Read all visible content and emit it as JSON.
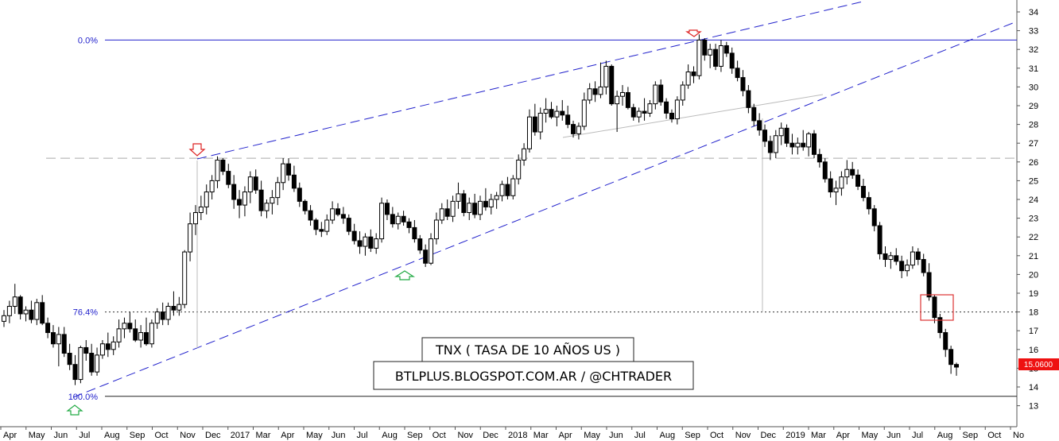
{
  "chart_data": {
    "type": "candlestick",
    "ticker_box": "TNX ( TASA DE 10 AÑOS US )",
    "credit_box": "BTLPLUS.BLOGSPOT.COM.AR / @CHTRADER",
    "last_price_label": "15.0600",
    "ylim": [
      12,
      35
    ],
    "y_ticks": [
      "13",
      "14",
      "15",
      "16",
      "17",
      "18",
      "19",
      "20",
      "21",
      "22",
      "23",
      "24",
      "25",
      "26",
      "27",
      "28",
      "29",
      "30",
      "31",
      "32",
      "33",
      "34"
    ],
    "x_labels": [
      "Apr",
      "May",
      "Jun",
      "Jul",
      "Aug",
      "Sep",
      "Oct",
      "Nov",
      "Dec",
      "2017",
      "Mar",
      "Apr",
      "May",
      "Jun",
      "Jul",
      "Aug",
      "Sep",
      "Oct",
      "Nov",
      "Dec",
      "2018",
      "Mar",
      "Apr",
      "May",
      "Jun",
      "Jul",
      "Aug",
      "Sep",
      "Oct",
      "Nov",
      "Dec",
      "2019",
      "Mar",
      "Apr",
      "May",
      "Jun",
      "Jul",
      "Aug",
      "Sep",
      "Oct",
      "No"
    ],
    "fib_levels": [
      {
        "label": "0.0%",
        "value": 32.5
      },
      {
        "label": "76.4%",
        "value": 18.0
      },
      {
        "label": "100.0%",
        "value": 13.5
      }
    ],
    "horizontal_levels": [
      26.2
    ],
    "colors": {
      "fib": "#2222cc",
      "trend": "#2222cc",
      "up_arrow": "#22aa44",
      "down_arrow": "#dd2222",
      "price_tag": "#ee1111",
      "highlight_box": "#dd3333"
    },
    "series": [
      {
        "values": [
          [
            17.5,
            18.1,
            17.2,
            17.8
          ],
          [
            17.8,
            18.6,
            17.4,
            18.3
          ],
          [
            18.3,
            19.5,
            17.9,
            18.8
          ],
          [
            18.8,
            18.9,
            17.6,
            17.9
          ],
          [
            17.9,
            18.3,
            17.5,
            18.1
          ],
          [
            18.1,
            18.6,
            17.4,
            17.6
          ],
          [
            17.6,
            18.7,
            17.3,
            18.5
          ],
          [
            18.5,
            18.9,
            17.3,
            17.4
          ],
          [
            17.4,
            17.7,
            16.6,
            16.9
          ],
          [
            16.9,
            17.3,
            16.1,
            16.3
          ],
          [
            16.3,
            17.2,
            15.1,
            16.8
          ],
          [
            16.8,
            17.2,
            15.6,
            15.8
          ],
          [
            15.8,
            16.3,
            14.9,
            15.2
          ],
          [
            15.2,
            15.7,
            14.1,
            14.4
          ],
          [
            14.4,
            16.2,
            14.2,
            16.1
          ],
          [
            16.1,
            16.5,
            15.4,
            15.8
          ],
          [
            15.8,
            16.3,
            14.6,
            14.8
          ],
          [
            14.8,
            16.1,
            14.6,
            15.7
          ],
          [
            15.7,
            16.5,
            15.5,
            16.3
          ],
          [
            16.3,
            16.9,
            15.6,
            16.0
          ],
          [
            16.0,
            16.7,
            15.7,
            16.4
          ],
          [
            16.4,
            17.6,
            16.1,
            17.1
          ],
          [
            17.1,
            17.7,
            16.6,
            17.4
          ],
          [
            17.4,
            18.0,
            16.9,
            17.1
          ],
          [
            17.1,
            17.6,
            16.4,
            16.5
          ],
          [
            16.5,
            17.3,
            16.1,
            16.9
          ],
          [
            16.9,
            17.7,
            16.2,
            16.3
          ],
          [
            16.3,
            17.6,
            16.1,
            17.4
          ],
          [
            17.4,
            18.2,
            17.1,
            18.0
          ],
          [
            18.0,
            18.5,
            17.3,
            17.6
          ],
          [
            17.6,
            18.5,
            17.3,
            18.3
          ],
          [
            18.3,
            19.1,
            17.8,
            18.1
          ],
          [
            18.1,
            18.8,
            17.8,
            18.4
          ],
          [
            18.4,
            21.3,
            18.2,
            21.2
          ],
          [
            21.2,
            23.3,
            20.7,
            22.7
          ],
          [
            22.7,
            23.7,
            22.1,
            23.3
          ],
          [
            23.3,
            24.2,
            22.9,
            23.6
          ],
          [
            23.6,
            24.8,
            23.2,
            24.4
          ],
          [
            24.4,
            25.3,
            24.0,
            25.0
          ],
          [
            25.0,
            26.3,
            24.6,
            26.1
          ],
          [
            26.1,
            26.2,
            25.3,
            25.5
          ],
          [
            25.5,
            25.9,
            24.6,
            24.8
          ],
          [
            24.8,
            25.3,
            23.5,
            24.0
          ],
          [
            24.0,
            24.5,
            23.0,
            23.7
          ],
          [
            23.7,
            24.7,
            23.1,
            24.4
          ],
          [
            24.4,
            25.5,
            23.8,
            25.2
          ],
          [
            25.2,
            25.6,
            24.3,
            24.5
          ],
          [
            24.5,
            25.0,
            23.1,
            23.4
          ],
          [
            23.4,
            24.0,
            23.0,
            23.8
          ],
          [
            23.8,
            24.5,
            23.2,
            24.1
          ],
          [
            24.1,
            25.2,
            23.7,
            24.9
          ],
          [
            24.9,
            26.2,
            24.5,
            25.9
          ],
          [
            25.9,
            26.2,
            25.0,
            25.3
          ],
          [
            25.3,
            25.8,
            24.4,
            24.6
          ],
          [
            24.6,
            24.9,
            23.6,
            23.9
          ],
          [
            23.9,
            24.0,
            23.2,
            23.4
          ],
          [
            23.4,
            23.7,
            22.6,
            22.9
          ],
          [
            22.9,
            23.0,
            22.1,
            22.4
          ],
          [
            22.4,
            22.8,
            22.0,
            22.3
          ],
          [
            22.3,
            23.2,
            22.1,
            22.9
          ],
          [
            22.9,
            23.9,
            22.7,
            23.5
          ],
          [
            23.5,
            23.8,
            23.1,
            23.2
          ],
          [
            23.2,
            23.6,
            22.7,
            23.0
          ],
          [
            23.0,
            23.2,
            22.1,
            22.3
          ],
          [
            22.3,
            22.7,
            21.6,
            21.8
          ],
          [
            21.8,
            22.3,
            21.1,
            21.5
          ],
          [
            21.5,
            22.2,
            21.0,
            22.0
          ],
          [
            22.0,
            22.4,
            21.2,
            21.4
          ],
          [
            21.4,
            22.2,
            21.1,
            21.9
          ],
          [
            21.9,
            24.1,
            21.7,
            23.8
          ],
          [
            23.8,
            24.0,
            22.9,
            23.2
          ],
          [
            23.2,
            23.6,
            22.5,
            22.7
          ],
          [
            22.7,
            23.3,
            22.4,
            23.1
          ],
          [
            23.1,
            23.4,
            22.6,
            22.8
          ],
          [
            22.8,
            23.0,
            22.2,
            22.5
          ],
          [
            22.5,
            22.9,
            21.7,
            21.9
          ],
          [
            21.9,
            22.1,
            21.1,
            21.3
          ],
          [
            21.3,
            21.6,
            20.4,
            20.6
          ],
          [
            20.6,
            22.2,
            20.5,
            21.9
          ],
          [
            21.9,
            23.3,
            21.6,
            22.9
          ],
          [
            22.9,
            23.8,
            22.7,
            23.5
          ],
          [
            23.5,
            24.0,
            22.9,
            23.1
          ],
          [
            23.1,
            24.2,
            22.8,
            23.9
          ],
          [
            23.9,
            24.9,
            23.5,
            24.3
          ],
          [
            24.3,
            24.5,
            23.1,
            23.3
          ],
          [
            23.3,
            24.1,
            22.9,
            23.8
          ],
          [
            23.8,
            24.3,
            23.0,
            23.2
          ],
          [
            23.2,
            24.2,
            22.9,
            23.9
          ],
          [
            23.9,
            24.6,
            23.4,
            23.6
          ],
          [
            23.6,
            24.3,
            23.2,
            24.0
          ],
          [
            24.0,
            24.4,
            23.5,
            24.2
          ],
          [
            24.2,
            25.0,
            23.9,
            24.8
          ],
          [
            24.8,
            25.2,
            24.0,
            24.2
          ],
          [
            24.2,
            25.3,
            24.0,
            25.1
          ],
          [
            25.1,
            26.4,
            24.8,
            26.1
          ],
          [
            26.1,
            27.0,
            25.8,
            26.7
          ],
          [
            26.7,
            28.8,
            26.5,
            28.4
          ],
          [
            28.4,
            29.1,
            27.4,
            27.6
          ],
          [
            27.6,
            28.9,
            27.2,
            28.6
          ],
          [
            28.6,
            29.4,
            28.1,
            28.8
          ],
          [
            28.8,
            29.2,
            28.3,
            28.4
          ],
          [
            28.4,
            29.0,
            27.9,
            28.7
          ],
          [
            28.7,
            29.3,
            28.2,
            28.5
          ],
          [
            28.5,
            29.0,
            27.8,
            28.0
          ],
          [
            28.0,
            28.2,
            27.3,
            27.5
          ],
          [
            27.5,
            28.1,
            27.2,
            27.9
          ],
          [
            27.9,
            29.7,
            27.7,
            29.3
          ],
          [
            29.3,
            30.2,
            29.1,
            29.9
          ],
          [
            29.9,
            30.3,
            29.2,
            29.6
          ],
          [
            29.6,
            31.3,
            29.4,
            30.0
          ],
          [
            30.0,
            31.4,
            29.6,
            31.1
          ],
          [
            31.1,
            31.2,
            29.0,
            29.1
          ],
          [
            29.1,
            29.8,
            27.6,
            29.5
          ],
          [
            29.5,
            30.1,
            29.0,
            29.7
          ],
          [
            29.7,
            30.0,
            28.8,
            28.9
          ],
          [
            28.9,
            29.1,
            28.2,
            28.4
          ],
          [
            28.4,
            28.9,
            28.1,
            28.7
          ],
          [
            28.7,
            29.4,
            28.2,
            28.6
          ],
          [
            28.6,
            29.3,
            28.4,
            29.1
          ],
          [
            29.1,
            30.3,
            28.8,
            30.1
          ],
          [
            30.1,
            30.4,
            29.0,
            29.2
          ],
          [
            29.2,
            29.4,
            28.3,
            28.6
          ],
          [
            28.6,
            28.8,
            28.1,
            28.3
          ],
          [
            28.3,
            29.5,
            28.0,
            29.3
          ],
          [
            29.3,
            30.3,
            29.0,
            30.1
          ],
          [
            30.1,
            31.2,
            29.9,
            30.8
          ],
          [
            30.8,
            31.1,
            30.2,
            30.6
          ],
          [
            30.6,
            32.8,
            30.4,
            32.5
          ],
          [
            32.5,
            32.6,
            31.4,
            31.7
          ],
          [
            31.7,
            32.3,
            31.0,
            32.0
          ],
          [
            32.0,
            32.3,
            30.9,
            31.1
          ],
          [
            31.1,
            32.5,
            30.8,
            32.2
          ],
          [
            32.2,
            32.4,
            31.6,
            31.8
          ],
          [
            31.8,
            32.1,
            30.7,
            31.0
          ],
          [
            31.0,
            31.4,
            30.3,
            30.5
          ],
          [
            30.5,
            30.9,
            29.5,
            29.8
          ],
          [
            29.8,
            30.1,
            28.6,
            28.9
          ],
          [
            28.9,
            29.1,
            27.9,
            28.2
          ],
          [
            28.2,
            28.6,
            27.4,
            27.7
          ],
          [
            27.7,
            28.0,
            26.8,
            27.1
          ],
          [
            27.1,
            27.4,
            26.1,
            26.5
          ],
          [
            26.5,
            27.7,
            26.2,
            27.4
          ],
          [
            27.4,
            28.1,
            26.9,
            27.8
          ],
          [
            27.8,
            28.0,
            26.8,
            27.0
          ],
          [
            27.0,
            27.5,
            26.4,
            26.8
          ],
          [
            26.8,
            27.3,
            26.4,
            27.0
          ],
          [
            27.0,
            27.7,
            26.6,
            26.8
          ],
          [
            26.8,
            27.6,
            26.3,
            27.5
          ],
          [
            27.5,
            27.7,
            26.2,
            26.4
          ],
          [
            26.4,
            26.7,
            25.7,
            26.0
          ],
          [
            26.0,
            26.2,
            24.9,
            25.1
          ],
          [
            25.1,
            25.5,
            24.1,
            24.4
          ],
          [
            24.4,
            25.0,
            23.7,
            24.6
          ],
          [
            24.6,
            25.5,
            24.2,
            25.2
          ],
          [
            25.2,
            26.1,
            24.8,
            25.6
          ],
          [
            25.6,
            26.0,
            25.1,
            25.3
          ],
          [
            25.3,
            25.6,
            24.5,
            24.7
          ],
          [
            24.7,
            25.1,
            23.9,
            24.1
          ],
          [
            24.1,
            24.4,
            23.2,
            23.5
          ],
          [
            23.5,
            23.7,
            22.3,
            22.6
          ],
          [
            22.6,
            22.8,
            20.8,
            21.1
          ],
          [
            21.1,
            21.5,
            20.4,
            20.8
          ],
          [
            20.8,
            21.2,
            20.3,
            21.0
          ],
          [
            21.0,
            21.4,
            20.5,
            20.7
          ],
          [
            20.7,
            21.0,
            19.8,
            20.2
          ],
          [
            20.2,
            20.8,
            19.9,
            20.5
          ],
          [
            20.5,
            21.5,
            20.3,
            21.2
          ],
          [
            21.2,
            21.4,
            20.5,
            20.8
          ],
          [
            20.8,
            21.1,
            19.9,
            20.1
          ],
          [
            20.1,
            20.6,
            18.6,
            18.8
          ],
          [
            18.8,
            18.9,
            17.4,
            17.7
          ],
          [
            17.7,
            17.9,
            16.6,
            16.9
          ],
          [
            16.9,
            17.1,
            15.6,
            16.0
          ],
          [
            16.0,
            16.2,
            14.7,
            15.2
          ],
          [
            15.2,
            15.3,
            14.6,
            15.06
          ]
        ]
      }
    ],
    "title": "",
    "xlabel": "",
    "ylabel": ""
  }
}
